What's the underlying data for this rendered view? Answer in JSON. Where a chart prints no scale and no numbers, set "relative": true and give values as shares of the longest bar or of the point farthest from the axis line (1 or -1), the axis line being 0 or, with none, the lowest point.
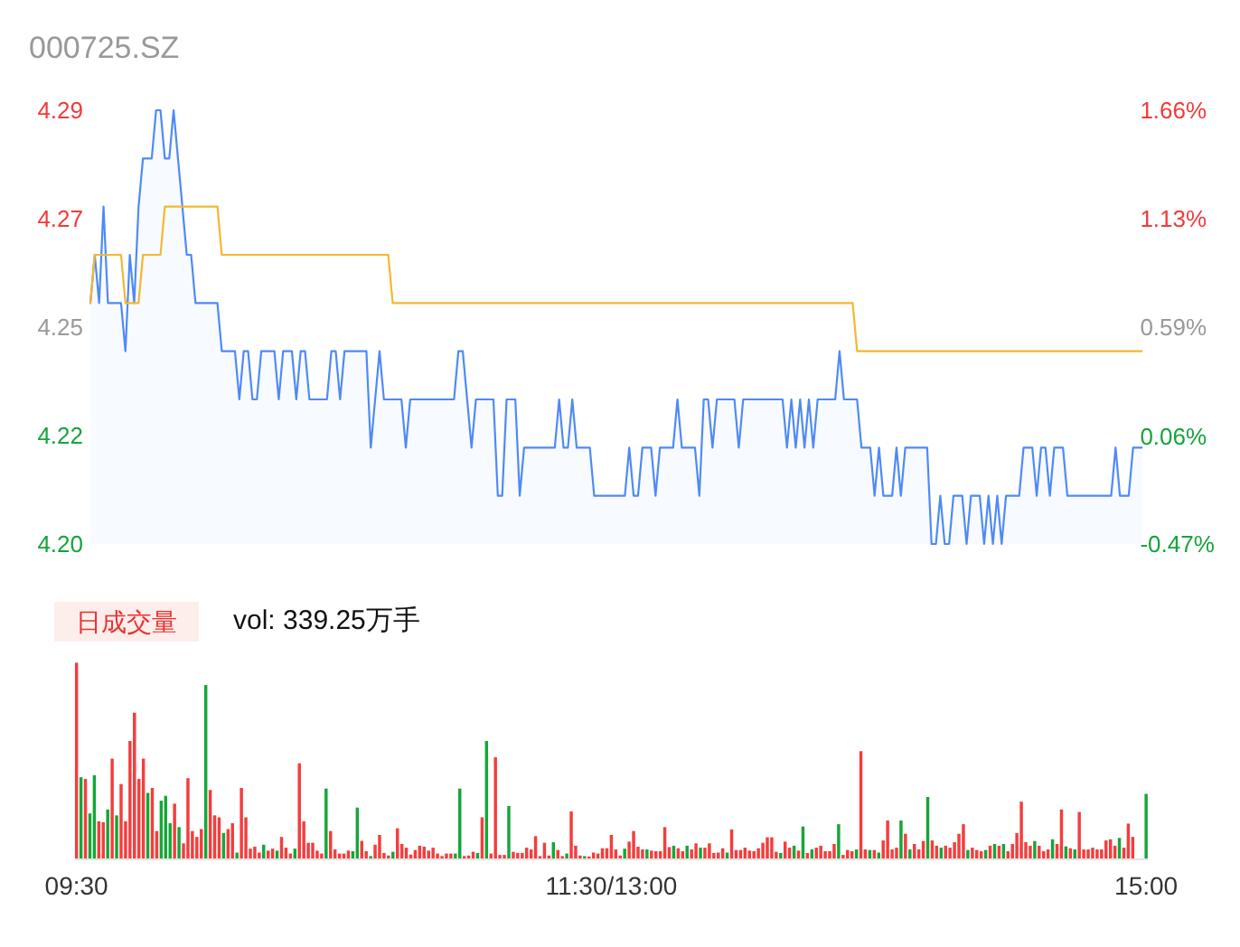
{
  "chart_data": [
    {
      "type": "area",
      "title": "000725.SZ",
      "categories": [
        null,
        null,
        null,
        null,
        null,
        null,
        null,
        null,
        null,
        null,
        null,
        null,
        null,
        null,
        null,
        null,
        null,
        null,
        null,
        null,
        null,
        null,
        null,
        null,
        null,
        null,
        null,
        null,
        null,
        null,
        null,
        null,
        null,
        null,
        null,
        null,
        null,
        null,
        null,
        null,
        null,
        null,
        null,
        null,
        null,
        null,
        null,
        null,
        null,
        null,
        null,
        null,
        null,
        null,
        null,
        null,
        null,
        null,
        null,
        null,
        null,
        null,
        null,
        null,
        null,
        null,
        null,
        null,
        null,
        null,
        null,
        null,
        null,
        null,
        null,
        null,
        null,
        null,
        null,
        null,
        null,
        null,
        null,
        null,
        null,
        null,
        null,
        null,
        null,
        null,
        null,
        null,
        null,
        null,
        null,
        null,
        null,
        null,
        null,
        null,
        null,
        null,
        null,
        null,
        null,
        null,
        null,
        null,
        null,
        null,
        null,
        null,
        null,
        null,
        null,
        null,
        null,
        null,
        null,
        null,
        null,
        null,
        null,
        null,
        null,
        null,
        null,
        null,
        null,
        null,
        null,
        null,
        null,
        null,
        null,
        null,
        null,
        null,
        null,
        null,
        null,
        null,
        null,
        null,
        null,
        null,
        null,
        null,
        null,
        null,
        null,
        null,
        null,
        null,
        null,
        null,
        null,
        null,
        null,
        null,
        null,
        null,
        null,
        null,
        null,
        null,
        null,
        null,
        null,
        null,
        null,
        null,
        null,
        null,
        null,
        null,
        null,
        null,
        null,
        null,
        null,
        null,
        null,
        null,
        null,
        null,
        null,
        null,
        null,
        null,
        null,
        null,
        null,
        null,
        null,
        null,
        null,
        null,
        null,
        null,
        null,
        null,
        null,
        null,
        null,
        null,
        null,
        null,
        null,
        null,
        null,
        null,
        null,
        null,
        null,
        null,
        null,
        null,
        null,
        null,
        null,
        null,
        null,
        null,
        null,
        null,
        null,
        null,
        null,
        null,
        null,
        null,
        null,
        null,
        null,
        null,
        null,
        null,
        null,
        null,
        null
      ],
      "series": [
        {
          "color": "#4e8af6",
          "values": [
            4.25,
            4.26,
            4.25,
            4.27,
            4.25,
            4.25,
            4.25,
            4.25,
            4.24,
            4.26,
            4.25,
            4.27,
            4.28,
            4.28,
            4.28,
            4.29,
            4.29,
            4.28,
            4.28,
            4.29,
            4.28,
            4.27,
            4.26,
            4.26,
            4.25,
            4.25,
            4.25,
            4.25,
            4.25,
            4.25,
            4.24,
            4.24,
            4.24,
            4.24,
            4.23,
            4.24,
            4.24,
            4.23,
            4.23,
            4.24,
            4.24,
            4.24,
            4.24,
            4.23,
            4.24,
            4.24,
            4.24,
            4.23,
            4.24,
            4.24,
            4.23,
            4.23,
            4.23,
            4.23,
            4.23,
            4.24,
            4.24,
            4.23,
            4.24,
            4.24,
            4.24,
            4.24,
            4.24,
            4.24,
            4.22,
            4.23,
            4.24,
            4.23,
            4.23,
            4.23,
            4.23,
            4.23,
            4.22,
            4.23,
            4.23,
            4.23,
            4.23,
            4.23,
            4.23,
            4.23,
            4.23,
            4.23,
            4.23,
            4.23,
            4.24,
            4.24,
            4.23,
            4.22,
            4.23,
            4.23,
            4.23,
            4.23,
            4.23,
            4.21,
            4.21,
            4.23,
            4.23,
            4.23,
            4.21,
            4.22,
            4.22,
            4.22,
            4.22,
            4.22,
            4.22,
            4.22,
            4.22,
            4.23,
            4.22,
            4.22,
            4.23,
            4.22,
            4.22,
            4.22,
            4.22,
            4.21,
            4.21,
            4.21,
            4.21,
            4.21,
            4.21,
            4.21,
            4.21,
            4.22,
            4.21,
            4.21,
            4.22,
            4.22,
            4.22,
            4.21,
            4.22,
            4.22,
            4.22,
            4.22,
            4.23,
            4.22,
            4.22,
            4.22,
            4.22,
            4.21,
            4.23,
            4.23,
            4.22,
            4.23,
            4.23,
            4.23,
            4.23,
            4.23,
            4.22,
            4.23,
            4.23,
            4.23,
            4.23,
            4.23,
            4.23,
            4.23,
            4.23,
            4.23,
            4.23,
            4.22,
            4.23,
            4.22,
            4.23,
            4.22,
            4.23,
            4.22,
            4.23,
            4.23,
            4.23,
            4.23,
            4.23,
            4.24,
            4.23,
            4.23,
            4.23,
            4.23,
            4.22,
            4.22,
            4.22,
            4.21,
            4.22,
            4.21,
            4.21,
            4.21,
            4.22,
            4.21,
            4.22,
            4.22,
            4.22,
            4.22,
            4.22,
            4.22,
            4.2,
            4.2,
            4.21,
            4.2,
            4.2,
            4.21,
            4.21,
            4.21,
            4.2,
            4.21,
            4.21,
            4.21,
            4.2,
            4.21,
            4.2,
            4.21,
            4.2,
            4.21,
            4.21,
            4.21,
            4.21,
            4.22,
            4.22,
            4.22,
            4.21,
            4.22,
            4.22,
            4.21,
            4.22,
            4.22,
            4.22,
            4.21,
            4.21,
            4.21,
            4.21,
            4.21,
            4.21,
            4.21,
            4.21,
            4.21,
            4.21,
            4.21,
            4.22,
            4.21,
            4.21,
            4.21,
            4.22,
            4.22,
            4.22
          ]
        },
        {
          "type": "line",
          "color": "#f5b731",
          "values": [
            4.25,
            4.26,
            4.26,
            4.26,
            4.26,
            4.26,
            4.26,
            4.26,
            4.25,
            4.25,
            4.25,
            4.25,
            4.26,
            4.26,
            4.26,
            4.26,
            4.26,
            4.27,
            4.27,
            4.27,
            4.27,
            4.27,
            4.27,
            4.27,
            4.27,
            4.27,
            4.27,
            4.27,
            4.27,
            4.27,
            4.26,
            4.26,
            4.26,
            4.26,
            4.26,
            4.26,
            4.26,
            4.26,
            4.26,
            4.26,
            4.26,
            4.26,
            4.26,
            4.26,
            4.26,
            4.26,
            4.26,
            4.26,
            4.26,
            4.26,
            4.26,
            4.26,
            4.26,
            4.26,
            4.26,
            4.26,
            4.26,
            4.26,
            4.26,
            4.26,
            4.26,
            4.26,
            4.26,
            4.26,
            4.26,
            4.26,
            4.26,
            4.26,
            4.26,
            4.25,
            4.25,
            4.25,
            4.25,
            4.25,
            4.25,
            4.25,
            4.25,
            4.25,
            4.25,
            4.25,
            4.25,
            4.25,
            4.25,
            4.25,
            4.25,
            4.25,
            4.25,
            4.25,
            4.25,
            4.25,
            4.25,
            4.25,
            4.25,
            4.25,
            4.25,
            4.25,
            4.25,
            4.25,
            4.25,
            4.25,
            4.25,
            4.25,
            4.25,
            4.25,
            4.25,
            4.25,
            4.25,
            4.25,
            4.25,
            4.25,
            4.25,
            4.25,
            4.25,
            4.25,
            4.25,
            4.25,
            4.25,
            4.25,
            4.25,
            4.25,
            4.25,
            4.25,
            4.25,
            4.25,
            4.25,
            4.25,
            4.25,
            4.25,
            4.25,
            4.25,
            4.25,
            4.25,
            4.25,
            4.25,
            4.25,
            4.25,
            4.25,
            4.25,
            4.25,
            4.25,
            4.25,
            4.25,
            4.25,
            4.25,
            4.25,
            4.25,
            4.25,
            4.25,
            4.25,
            4.25,
            4.25,
            4.25,
            4.25,
            4.25,
            4.25,
            4.25,
            4.25,
            4.25,
            4.25,
            4.25,
            4.25,
            4.25,
            4.25,
            4.25,
            4.25,
            4.25,
            4.25,
            4.25,
            4.25,
            4.25,
            4.25,
            4.25,
            4.25,
            4.25,
            4.25,
            4.24,
            4.24,
            4.24,
            4.24,
            4.24,
            4.24,
            4.24,
            4.24,
            4.24,
            4.24,
            4.24,
            4.24,
            4.24,
            4.24,
            4.24,
            4.24,
            4.24,
            4.24,
            4.24,
            4.24,
            4.24,
            4.24,
            4.24,
            4.24,
            4.24,
            4.24,
            4.24,
            4.24,
            4.24,
            4.24,
            4.24,
            4.24,
            4.24,
            4.24,
            4.24,
            4.24,
            4.24,
            4.24,
            4.24,
            4.24,
            4.24,
            4.24,
            4.24,
            4.24,
            4.24,
            4.24,
            4.24,
            4.24,
            4.24,
            4.24,
            4.24,
            4.24,
            4.24,
            4.24,
            4.24,
            4.24,
            4.24,
            4.24,
            4.24,
            4.24,
            4.24,
            4.24,
            4.24,
            4.24,
            4.24,
            4.24
          ]
        }
      ],
      "ylim": [
        4.2,
        4.29
      ],
      "yticks": [
        {
          "value": 4.2,
          "label": "4.20"
        },
        {
          "value": 4.2225,
          "label": "4.22"
        },
        {
          "value": 4.245,
          "label": "4.25"
        },
        {
          "value": 4.2675,
          "label": "4.27"
        },
        {
          "value": 4.29,
          "label": "4.29"
        }
      ],
      "y2lim": [
        -0.47,
        1.66
      ],
      "y2ticks": [
        {
          "value": -0.47,
          "label": "-0.47%"
        },
        {
          "value": 0.06,
          "label": "0.06%"
        },
        {
          "value": 0.595,
          "label": "0.59%"
        },
        {
          "value": 1.13,
          "label": "1.13%"
        },
        {
          "value": 1.66,
          "label": "1.66%"
        }
      ],
      "tick_labels": "y"
    },
    {
      "type": "bar",
      "title": "日成交量",
      "subtitle": "vol: 339.25万手",
      "relative": true,
      "categories": [
        "09:30",
        null,
        null,
        null,
        null,
        null,
        null,
        null,
        null,
        null,
        null,
        null,
        null,
        null,
        null,
        null,
        null,
        null,
        null,
        null,
        null,
        null,
        null,
        null,
        null,
        null,
        null,
        null,
        null,
        null,
        null,
        null,
        null,
        null,
        null,
        null,
        null,
        null,
        null,
        null,
        null,
        null,
        null,
        null,
        null,
        null,
        null,
        null,
        null,
        null,
        null,
        null,
        null,
        null,
        null,
        null,
        null,
        null,
        null,
        null,
        null,
        null,
        null,
        null,
        null,
        null,
        null,
        null,
        null,
        null,
        null,
        null,
        null,
        null,
        null,
        null,
        null,
        null,
        null,
        null,
        null,
        null,
        null,
        null,
        null,
        null,
        null,
        null,
        null,
        null,
        null,
        null,
        null,
        null,
        null,
        null,
        null,
        null,
        null,
        null,
        null,
        null,
        null,
        null,
        null,
        null,
        null,
        null,
        null,
        null,
        null,
        null,
        null,
        null,
        null,
        null,
        null,
        null,
        null,
        null,
        "11:30/13:00",
        null,
        null,
        null,
        null,
        null,
        null,
        null,
        null,
        null,
        null,
        null,
        null,
        null,
        null,
        null,
        null,
        null,
        null,
        null,
        null,
        null,
        null,
        null,
        null,
        null,
        null,
        null,
        null,
        null,
        null,
        null,
        null,
        null,
        null,
        null,
        null,
        null,
        null,
        null,
        null,
        null,
        null,
        null,
        null,
        null,
        null,
        null,
        null,
        null,
        null,
        null,
        null,
        null,
        null,
        null,
        null,
        null,
        null,
        null,
        null,
        null,
        null,
        null,
        null,
        null,
        null,
        null,
        null,
        null,
        null,
        null,
        null,
        null,
        null,
        null,
        null,
        null,
        null,
        null,
        null,
        null,
        null,
        null,
        null,
        null,
        null,
        null,
        null,
        null,
        null,
        null,
        null,
        null,
        null,
        null,
        null,
        null,
        null,
        null,
        null,
        null,
        null,
        null,
        null,
        null,
        null,
        null,
        null,
        null,
        null,
        null,
        null,
        null,
        null,
        null,
        null,
        null,
        null,
        null,
        "15:00"
      ],
      "values": [
        1.0,
        0.415,
        0.406,
        0.23,
        0.425,
        0.19,
        0.185,
        0.25,
        0.51,
        0.22,
        0.38,
        0.19,
        0.6,
        0.745,
        0.406,
        0.51,
        0.335,
        0.36,
        0.14,
        0.295,
        0.32,
        0.18,
        0.28,
        0.16,
        0.077,
        0.41,
        0.14,
        0.11,
        0.15,
        0.886,
        0.35,
        0.22,
        0.21,
        0.13,
        0.15,
        0.18,
        0.03,
        0.36,
        0.21,
        0.05,
        0.06,
        0.03,
        0.07,
        0.04,
        0.05,
        0.04,
        0.11,
        0.055,
        0.025,
        0.05,
        0.486,
        0.19,
        0.08,
        0.08,
        0.04,
        0.025,
        0.357,
        0.14,
        0.046,
        0.025,
        0.025,
        0.04,
        0.037,
        0.26,
        0.09,
        0.037,
        0.012,
        0.07,
        0.12,
        0.028,
        0.015,
        0.034,
        0.154,
        0.074,
        0.055,
        0.02,
        0.043,
        0.065,
        0.06,
        0.04,
        0.055,
        0.025,
        0.012,
        0.025,
        0.025,
        0.025,
        0.357,
        0.012,
        0.015,
        0.034,
        0.028,
        0.21,
        0.6,
        0.025,
        0.517,
        0.018,
        0.018,
        0.268,
        0.034,
        0.028,
        0.028,
        0.055,
        0.046,
        0.114,
        0.012,
        0.08,
        0.015,
        0.083,
        0.043,
        0.012,
        0.025,
        0.24,
        0.065,
        0.015,
        0.012,
        0.01,
        0.03,
        0.025,
        0.052,
        0.052,
        0.12,
        0.046,
        0.015,
        0.05,
        0.086,
        0.14,
        0.06,
        0.046,
        0.046,
        0.04,
        0.037,
        0.037,
        0.16,
        0.058,
        0.065,
        0.052,
        0.037,
        0.065,
        0.046,
        0.077,
        0.055,
        0.055,
        0.077,
        0.028,
        0.03,
        0.052,
        0.03,
        0.148,
        0.043,
        0.043,
        0.055,
        0.04,
        0.037,
        0.052,
        0.08,
        0.108,
        0.108,
        0.034,
        0.028,
        0.086,
        0.055,
        0.065,
        0.04,
        0.163,
        0.028,
        0.046,
        0.055,
        0.065,
        0.037,
        0.037,
        0.074,
        0.175,
        0.018,
        0.043,
        0.037,
        0.046,
        0.548,
        0.046,
        0.043,
        0.043,
        0.03,
        0.092,
        0.194,
        0.046,
        0.055,
        0.194,
        0.126,
        0.046,
        0.074,
        0.046,
        0.089,
        0.314,
        0.092,
        0.065,
        0.055,
        0.065,
        0.055,
        0.083,
        0.126,
        0.175,
        0.043,
        0.055,
        0.043,
        0.037,
        0.043,
        0.065,
        0.074,
        0.065,
        0.074,
        0.037,
        0.074,
        0.13,
        0.29,
        0.083,
        0.065,
        0.089,
        0.065,
        0.037,
        0.046,
        0.098,
        0.074,
        0.25,
        0.062,
        0.052,
        0.046,
        0.237,
        0.046,
        0.046,
        0.055,
        0.046,
        0.046,
        0.092,
        0.098,
        0.065,
        0.105,
        0.055,
        0.178,
        0.11,
        null,
        null,
        0.33
      ],
      "colors": [
        "#f43d3d",
        "#17a53a",
        "#f43d3d",
        "#17a53a",
        "#17a53a",
        "#f43d3d",
        "#f43d3d",
        "#17a53a",
        "#f43d3d",
        "#17a53a",
        "#f43d3d",
        "#f43d3d",
        "#f43d3d",
        "#f43d3d",
        "#f43d3d",
        "#f43d3d",
        "#17a53a",
        "#f43d3d",
        "#f43d3d",
        "#17a53a",
        "#17a53a",
        "#17a53a",
        "#f43d3d",
        "#17a53a",
        "#f43d3d",
        "#f43d3d",
        "#f43d3d",
        "#f43d3d",
        "#f43d3d",
        "#17a53a",
        "#f43d3d",
        "#f43d3d",
        "#f43d3d",
        "#17a53a",
        "#f43d3d",
        "#f43d3d",
        "#17a53a",
        "#f43d3d",
        "#f43d3d",
        "#f43d3d",
        "#f43d3d",
        "#f43d3d",
        "#17a53a",
        "#f43d3d",
        "#f43d3d",
        "#17a53a",
        "#f43d3d",
        "#f43d3d",
        "#f43d3d",
        "#17a53a",
        "#f43d3d",
        "#f43d3d",
        "#f43d3d",
        "#f43d3d",
        "#f43d3d",
        "#f43d3d",
        "#17a53a",
        "#f43d3d",
        "#f43d3d",
        "#f43d3d",
        "#f43d3d",
        "#f43d3d",
        "#17a53a",
        "#17a53a",
        "#f43d3d",
        "#f43d3d",
        "#17a53a",
        "#f43d3d",
        "#f43d3d",
        "#f43d3d",
        "#f43d3d",
        "#17a53a",
        "#f43d3d",
        "#f43d3d",
        "#f43d3d",
        "#f43d3d",
        "#f43d3d",
        "#f43d3d",
        "#f43d3d",
        "#f43d3d",
        "#f43d3d",
        "#f43d3d",
        "#f43d3d",
        "#f43d3d",
        "#f43d3d",
        "#17a53a",
        "#17a53a",
        "#f43d3d",
        "#f43d3d",
        "#f43d3d",
        "#17a53a",
        "#f43d3d",
        "#17a53a",
        "#f43d3d",
        "#f43d3d",
        "#f43d3d",
        "#f43d3d",
        "#17a53a",
        "#f43d3d",
        "#f43d3d",
        "#f43d3d",
        "#f43d3d",
        "#f43d3d",
        "#f43d3d",
        "#f43d3d",
        "#f43d3d",
        "#f43d3d",
        "#17a53a",
        "#f43d3d",
        "#f43d3d",
        "#17a53a",
        "#f43d3d",
        "#f43d3d",
        "#f43d3d",
        "#17a53a",
        "#f43d3d",
        "#f43d3d",
        "#f43d3d",
        "#f43d3d",
        "#f43d3d",
        "#f43d3d",
        "#f43d3d",
        "#f43d3d",
        "#17a53a",
        "#f43d3d",
        "#f43d3d",
        "#f43d3d",
        "#f43d3d",
        "#17a53a",
        "#f43d3d",
        "#f43d3d",
        "#f43d3d",
        "#f43d3d",
        "#f43d3d",
        "#17a53a",
        "#f43d3d",
        "#f43d3d",
        "#17a53a",
        "#f43d3d",
        "#f43d3d",
        "#17a53a",
        "#f43d3d",
        "#f43d3d",
        "#f43d3d",
        "#f43d3d",
        "#f43d3d",
        "#17a53a",
        "#f43d3d",
        "#f43d3d",
        "#f43d3d",
        "#f43d3d",
        "#f43d3d",
        "#f43d3d",
        "#f43d3d",
        "#f43d3d",
        "#f43d3d",
        "#f43d3d",
        "#f43d3d",
        "#17a53a",
        "#f43d3d",
        "#f43d3d",
        "#17a53a",
        "#f43d3d",
        "#17a53a",
        "#f43d3d",
        "#17a53a",
        "#f43d3d",
        "#f43d3d",
        "#f43d3d",
        "#f43d3d",
        "#f43d3d",
        "#17a53a",
        "#f43d3d",
        "#f43d3d",
        "#f43d3d",
        "#17a53a",
        "#f43d3d",
        "#f43d3d",
        "#17a53a",
        "#f43d3d",
        "#17a53a",
        "#f43d3d",
        "#f43d3d",
        "#f43d3d",
        "#f43d3d",
        "#17a53a",
        "#f43d3d",
        "#17a53a",
        "#f43d3d",
        "#f43d3d",
        "#f43d3d",
        "#17a53a",
        "#f43d3d",
        "#f43d3d",
        "#17a53a",
        "#f43d3d",
        "#f43d3d",
        "#f43d3d",
        "#f43d3d",
        "#f43d3d",
        "#17a53a",
        "#f43d3d",
        "#f43d3d",
        "#f43d3d",
        "#17a53a",
        "#f43d3d",
        "#17a53a",
        "#f43d3d",
        "#17a53a",
        "#f43d3d",
        "#f43d3d",
        "#f43d3d",
        "#f43d3d",
        "#f43d3d",
        "#f43d3d",
        "#17a53a",
        "#f43d3d",
        "#f43d3d",
        "#f43d3d",
        "#17a53a",
        "#f43d3d",
        "#f43d3d",
        "#17a53a",
        "#f43d3d",
        "#17a53a",
        "#f43d3d",
        "#f43d3d",
        "#f43d3d",
        "#f43d3d",
        "#f43d3d",
        "#f43d3d",
        "#f43d3d",
        "#f43d3d",
        "#f43d3d",
        "#17a53a",
        "#f43d3d",
        "#f43d3d",
        "#f43d3d",
        null,
        null,
        "#17a53a"
      ],
      "tick_labels": "x"
    }
  ]
}
